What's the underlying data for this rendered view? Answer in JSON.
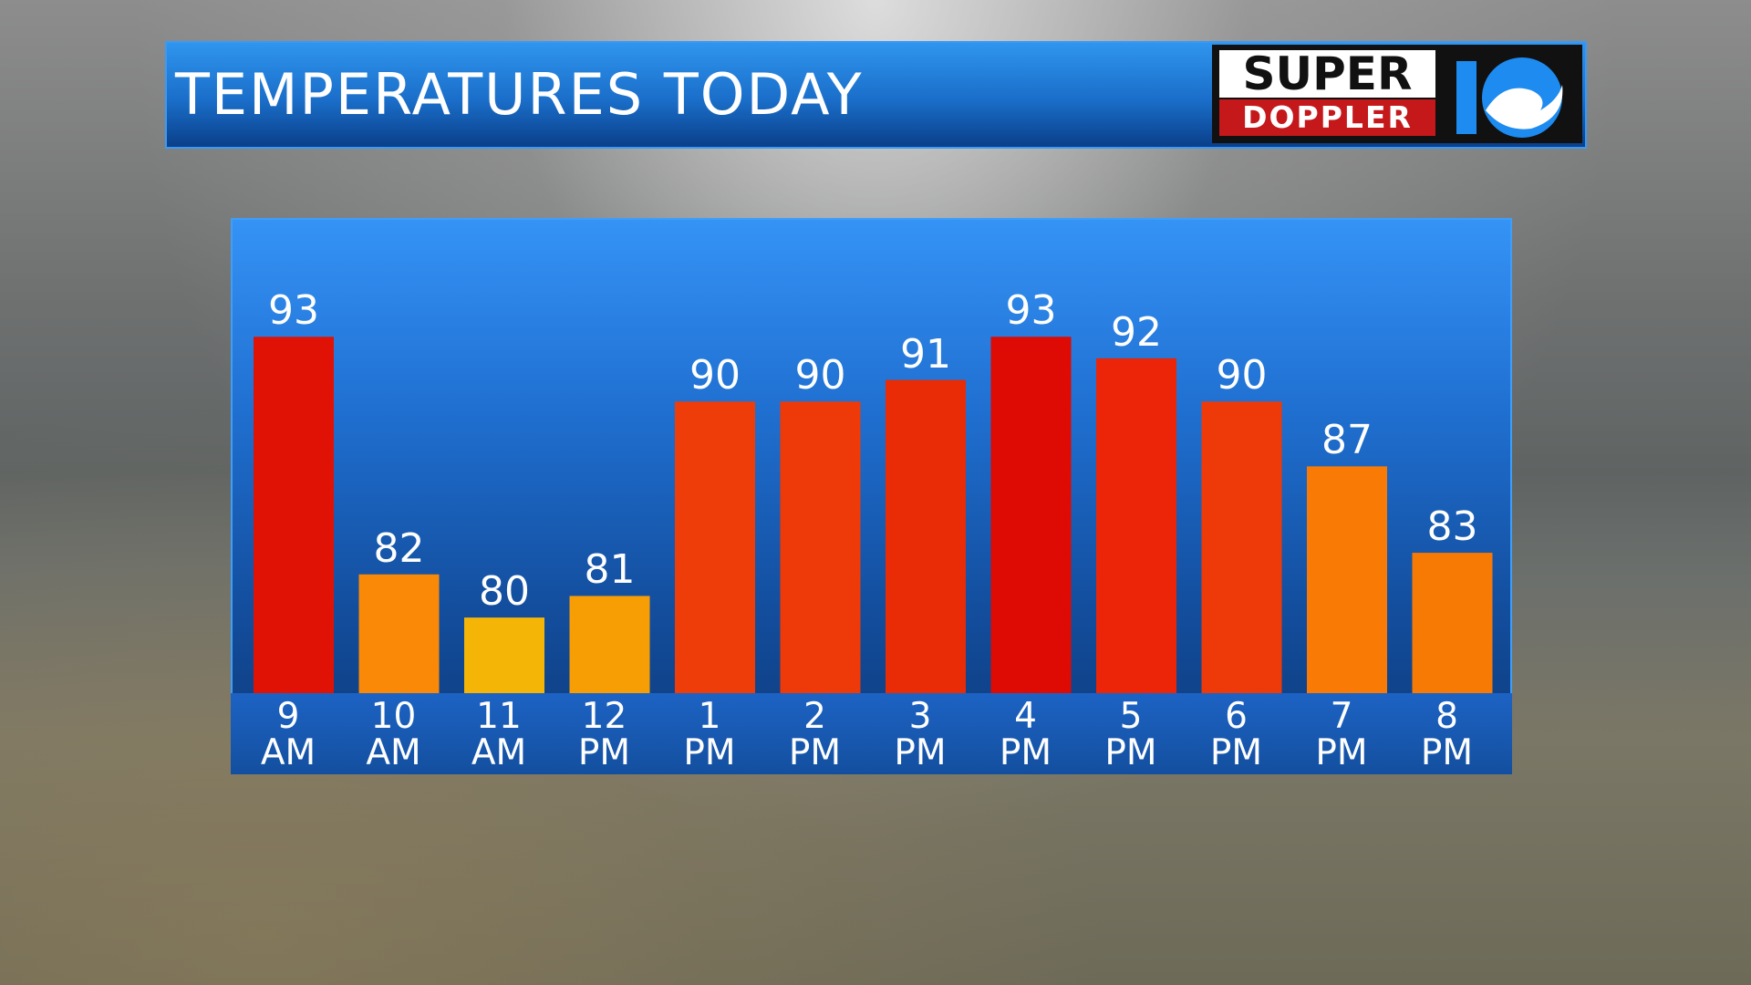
{
  "chart_data": {
    "type": "bar",
    "title": "TEMPERATURES TODAY",
    "categories": [
      "9\nAM",
      "10\nAM",
      "11\nAM",
      "12\nPM",
      "1\nPM",
      "2\nPM",
      "3\nPM",
      "4\nPM",
      "5\nPM",
      "6\nPM",
      "7\nPM",
      "8\nPM"
    ],
    "values": [
      93,
      82,
      80,
      81,
      90,
      90,
      91,
      93,
      92,
      90,
      87,
      83
    ],
    "colors": [
      "#e01206",
      "#f98906",
      "#f5b506",
      "#f89e05",
      "#ee3d08",
      "#ee3a08",
      "#e92b06",
      "#de0a04",
      "#ec2408",
      "#ee3a08",
      "#f97b05",
      "#f77a05"
    ],
    "ylim": [
      76.5,
      98.5
    ]
  },
  "logo": {
    "line1": "SUPER",
    "line2": "DOPPLER"
  }
}
